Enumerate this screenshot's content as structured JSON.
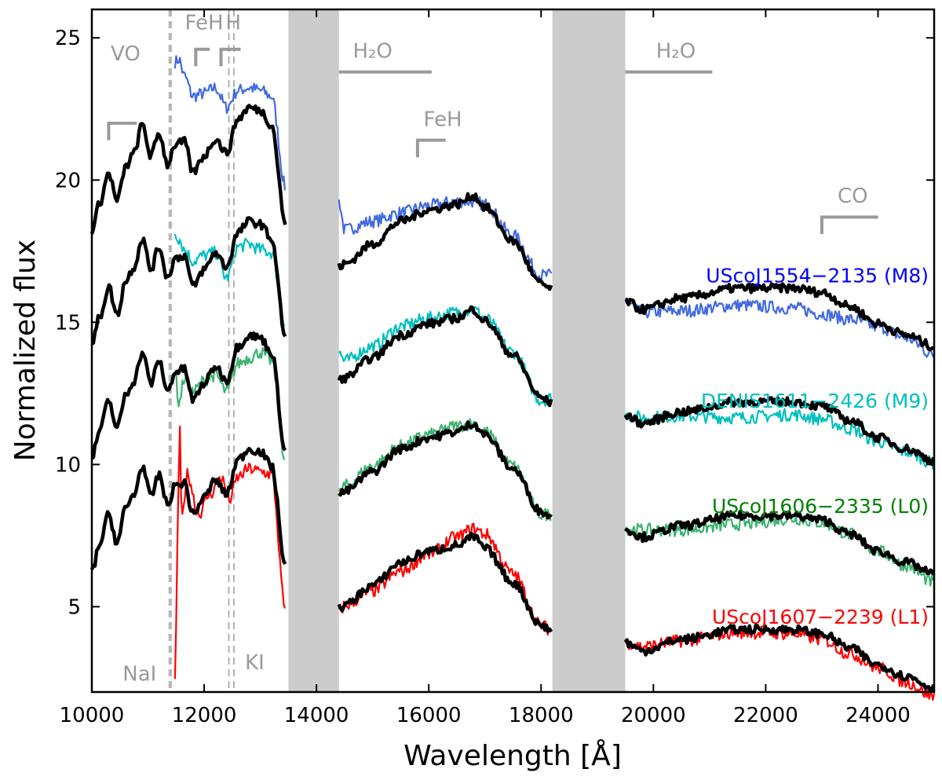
{
  "chart_data": {
    "type": "line",
    "title": "",
    "xlabel": "Wavelength [Å]",
    "ylabel": "Normalized flux",
    "xlim": [
      10000,
      25000
    ],
    "ylim": [
      2,
      26
    ],
    "xticks": [
      10000,
      12000,
      14000,
      16000,
      18000,
      20000,
      22000,
      24000
    ],
    "xtick_labels": [
      "10000",
      "12000",
      "14000",
      "16000",
      "18000",
      "20000",
      "22000",
      "24000"
    ],
    "yticks": [
      5,
      10,
      15,
      20,
      25
    ],
    "ytick_labels": [
      "5",
      "10",
      "15",
      "20",
      "25"
    ],
    "grid": false,
    "shaded_regions": [
      [
        13500,
        14400
      ],
      [
        18200,
        19500
      ]
    ],
    "dashed_lines": [
      11380,
      11410,
      12440,
      12530
    ],
    "features": [
      {
        "label": "VO",
        "label_x": 10600,
        "label_y": 24.2,
        "bar_x": [
          10300,
          10800
        ],
        "bar_y": 22.0,
        "tick_y": 21.4
      },
      {
        "label": "FeH",
        "label_x": 12000,
        "label_y": 25.3,
        "bar_x": [
          11850,
          12100
        ],
        "bar_y": 24.6,
        "tick_y": 24.0
      },
      {
        "label": "H",
        "label_x": 12520,
        "label_y": 25.3,
        "bar_x": [
          12300,
          12650
        ],
        "bar_y": 24.6,
        "tick_y": 24.0
      },
      {
        "label": "H₂O",
        "label_x": 15000,
        "label_y": 24.3,
        "bar_x": [
          14400,
          16050
        ],
        "bar_y": 23.8,
        "tick_y": 23.8
      },
      {
        "label": "FeH",
        "label_x": 16250,
        "label_y": 21.9,
        "bar_x": [
          15800,
          16300
        ],
        "bar_y": 21.4,
        "tick_y": 20.8
      },
      {
        "label": "H₂O",
        "label_x": 20400,
        "label_y": 24.3,
        "bar_x": [
          19500,
          21050
        ],
        "bar_y": 23.8,
        "tick_y": 23.8
      },
      {
        "label": "CO",
        "label_x": 23550,
        "label_y": 19.2,
        "bar_x": [
          23000,
          24000
        ],
        "bar_y": 18.7,
        "tick_y": 18.1
      },
      {
        "label": "NaI",
        "label_x": 10850,
        "label_y": 2.4,
        "bar_x": null,
        "bar_y": null,
        "tick_y": null
      },
      {
        "label": "KI",
        "label_x": 12900,
        "label_y": 2.8,
        "bar_x": null,
        "bar_y": null,
        "tick_y": null
      }
    ],
    "series": [
      {
        "name": "UScoJ1554−2135 (M8)",
        "color": "#4169e1",
        "legend_color": "#0000ff",
        "legend_y": 16.4,
        "offset": 15.75,
        "kind": "colored",
        "segments": [
          {
            "x": [
              11480,
              11550,
              11650,
              11800,
              12000,
              12200,
              12400,
              12600,
              12800,
              13000,
              13200,
              13450
            ],
            "y": [
              8.4,
              8.5,
              7.9,
              7.2,
              7.3,
              7.5,
              6.8,
              7.4,
              7.5,
              7.4,
              7.2,
              4.0
            ]
          },
          {
            "x": [
              14400,
              14500,
              15000,
              15500,
              16000,
              16500,
              16800,
              17000,
              17500,
              18000,
              18200
            ],
            "y": [
              3.5,
              2.5,
              2.8,
              3.1,
              3.35,
              3.5,
              3.5,
              3.4,
              2.3,
              0.9,
              0.9
            ]
          },
          {
            "x": [
              19500,
              19800,
              20500,
              21500,
              22500,
              23000,
              23500,
              24000,
              24500,
              25000
            ],
            "y": [
              0.0,
              -0.4,
              -0.35,
              -0.15,
              -0.25,
              -0.45,
              -0.65,
              -0.9,
              -1.3,
              -1.9
            ]
          }
        ]
      },
      {
        "name": "DENIS1611−2426 (M9)",
        "color": "#00bfbf",
        "legend_color": "#00bfbf",
        "legend_y": 12.0,
        "offset": 11.75,
        "kind": "colored",
        "segments": [
          {
            "x": [
              11480,
              11550,
              11650,
              11800,
              12000,
              12200,
              12400,
              12600,
              12800,
              13000,
              13200,
              13450
            ],
            "y": [
              6.4,
              6.2,
              5.8,
              5.4,
              5.6,
              5.7,
              4.8,
              5.9,
              6.0,
              5.8,
              5.7,
              3.2
            ]
          },
          {
            "x": [
              14400,
              14500,
              15000,
              15500,
              16000,
              16500,
              16800,
              17000,
              17500,
              18000,
              18200
            ],
            "y": [
              2.2,
              1.9,
              2.4,
              3.1,
              3.4,
              3.6,
              3.7,
              3.4,
              2.2,
              0.5,
              0.6
            ]
          },
          {
            "x": [
              19500,
              19800,
              20500,
              21500,
              22500,
              23000,
              23500,
              24000,
              24500,
              25000
            ],
            "y": [
              0.0,
              -0.1,
              -0.05,
              -0.1,
              0.0,
              -0.15,
              -0.5,
              -0.95,
              -1.3,
              -1.7
            ]
          }
        ]
      },
      {
        "name": "UScoJ1606−2335 (L0)",
        "color": "#3cb371",
        "legend_color": "#008000",
        "legend_y": 8.3,
        "offset": 7.75,
        "kind": "colored",
        "segments": [
          {
            "x": [
              11480,
              11550,
              11650,
              11800,
              12000,
              12200,
              12400,
              12600,
              12800,
              13000,
              13200,
              13450
            ],
            "y": [
              5.6,
              4.4,
              5.3,
              4.8,
              5.2,
              5.4,
              4.8,
              5.8,
              6.0,
              6.2,
              5.9,
              2.4
            ]
          },
          {
            "x": [
              14400,
              14500,
              15000,
              15500,
              16000,
              16500,
              16800,
              17000,
              17500,
              18000,
              18200
            ],
            "y": [
              1.2,
              1.5,
              2.2,
              2.9,
              3.3,
              3.6,
              3.7,
              3.4,
              2.2,
              0.5,
              0.5
            ]
          },
          {
            "x": [
              19500,
              19800,
              20500,
              21500,
              22500,
              23000,
              23500,
              24000,
              24500,
              25000
            ],
            "y": [
              0.0,
              -0.05,
              -0.05,
              0.15,
              0.35,
              0.2,
              -0.2,
              -0.8,
              -1.3,
              -1.9
            ]
          }
        ]
      },
      {
        "name": "UScoJ1607−2239 (L1)",
        "color": "#ff0000",
        "legend_color": "#ff0000",
        "legend_y": 4.4,
        "offset": 3.75,
        "kind": "colored",
        "segments": [
          {
            "x": [
              11480,
              11530,
              11560,
              11600,
              11700,
              11900,
              12100,
              12300,
              12450,
              12600,
              12800,
              13000,
              13200,
              13450
            ],
            "y": [
              -1.2,
              3.5,
              7.9,
              4.3,
              5.9,
              4.5,
              5.2,
              5.8,
              5.0,
              5.8,
              6.1,
              6.0,
              5.9,
              1.1
            ]
          },
          {
            "x": [
              14400,
              14500,
              15000,
              15500,
              16000,
              16500,
              16800,
              17000,
              17500,
              18000,
              18200
            ],
            "y": [
              1.0,
              1.3,
              1.8,
              2.5,
              3.1,
              3.7,
              4.0,
              3.8,
              2.4,
              0.6,
              0.4
            ]
          },
          {
            "x": [
              19500,
              19800,
              20500,
              21500,
              22500,
              23000,
              23500,
              24000,
              24500,
              25000
            ],
            "y": [
              0.0,
              -0.15,
              0.05,
              0.35,
              0.3,
              0.1,
              -0.4,
              -0.9,
              -1.4,
              -1.9
            ]
          }
        ]
      },
      {
        "name": "template",
        "color": "#000000",
        "kind": "template",
        "offsets": [
          15.75,
          11.75,
          7.75,
          3.75
        ],
        "segments": [
          {
            "x": [
              10000,
              10150,
              10300,
              10450,
              10600,
              10750,
              10900,
              11050,
              11200,
              11350,
              11480,
              11650,
              11800,
              12000,
              12200,
              12400,
              12600,
              12800,
              13000,
              13200,
              13450
            ],
            "y": [
              2.5,
              3.5,
              4.5,
              3.5,
              4.7,
              5.2,
              6.2,
              5.1,
              5.9,
              4.8,
              5.5,
              5.6,
              4.5,
              5.1,
              5.7,
              5.2,
              6.4,
              6.8,
              6.7,
              6.2,
              2.7
            ]
          },
          {
            "x": [
              14400,
              14500,
              15000,
              15500,
              16000,
              16500,
              16800,
              17000,
              17500,
              18000,
              18200
            ],
            "y": [
              1.2,
              1.3,
              2.0,
              2.8,
              3.2,
              3.4,
              3.7,
              3.3,
              2.1,
              0.6,
              0.4
            ]
          },
          {
            "x": [
              19500,
              19800,
              20500,
              21500,
              22500,
              23000,
              23500,
              24000,
              24500,
              25000
            ],
            "y": [
              0.0,
              -0.3,
              0.1,
              0.45,
              0.45,
              0.3,
              -0.2,
              -0.8,
              -1.2,
              -1.6
            ]
          }
        ]
      }
    ]
  }
}
